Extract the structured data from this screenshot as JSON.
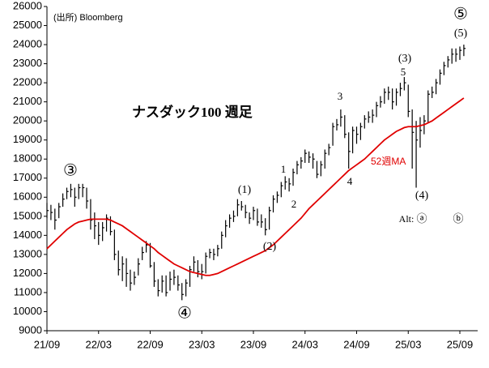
{
  "chart_data": {
    "type": "ohlc",
    "title": "ナスダック100 週足",
    "source": "(出所)  Bloomberg",
    "categories": [
      "21/09",
      null,
      null,
      null,
      null,
      null,
      null,
      null,
      null,
      null,
      null,
      null,
      null,
      "22/03",
      null,
      null,
      null,
      null,
      null,
      null,
      null,
      null,
      null,
      null,
      null,
      null,
      "22/09",
      null,
      null,
      null,
      null,
      null,
      null,
      null,
      null,
      null,
      null,
      null,
      null,
      "23/03",
      null,
      null,
      null,
      null,
      null,
      null,
      null,
      null,
      null,
      null,
      null,
      null,
      "23/09",
      null,
      null,
      null,
      null,
      null,
      null,
      null,
      null,
      null,
      null,
      null,
      null,
      "24/03",
      null,
      null,
      null,
      null,
      null,
      null,
      null,
      null,
      null,
      null,
      null,
      null,
      "24/09",
      null,
      null,
      null,
      null,
      null,
      null,
      null,
      null,
      null,
      null,
      null,
      null,
      "25/03",
      null,
      null,
      null,
      null,
      null,
      null,
      null,
      null,
      null,
      null,
      null,
      null,
      "25/09",
      null
    ],
    "high": [
      15700,
      15600,
      15400,
      15700,
      16200,
      16500,
      16700,
      16500,
      16700,
      16700,
      16500,
      15900,
      15200,
      14700,
      14700,
      15100,
      15000,
      14300,
      13200,
      12900,
      12800,
      12200,
      12100,
      12800,
      13400,
      13700,
      13600,
      12600,
      11700,
      11900,
      11900,
      12100,
      12200,
      11900,
      11500,
      11700,
      12400,
      12900,
      12700,
      12500,
      13100,
      13300,
      13300,
      13500,
      14200,
      14800,
      15100,
      15300,
      15900,
      15800,
      15600,
      15200,
      15500,
      15400,
      15100,
      14900,
      15500,
      16100,
      16300,
      16800,
      17100,
      17000,
      17500,
      17900,
      18100,
      18500,
      18400,
      18300,
      17900,
      17900,
      18500,
      18800,
      19900,
      20100,
      20600,
      20300,
      19400,
      19700,
      19700,
      19900,
      20300,
      20500,
      20600,
      21000,
      21300,
      21700,
      21800,
      21700,
      21700,
      22000,
      22300,
      21900,
      20600,
      20000,
      20200,
      20300,
      21600,
      21800,
      22200,
      22700,
      23100,
      23400,
      23800,
      23800,
      23900,
      24000
    ],
    "low": [
      14900,
      14800,
      14300,
      14900,
      15500,
      15900,
      16000,
      15500,
      15900,
      16000,
      15400,
      14300,
      13800,
      13500,
      13700,
      14200,
      14000,
      12700,
      11900,
      11600,
      11300,
      11100,
      11400,
      11900,
      12700,
      13100,
      12300,
      11300,
      10800,
      11000,
      10800,
      11100,
      11400,
      11100,
      10600,
      10800,
      11300,
      12100,
      11800,
      11700,
      12000,
      12800,
      12700,
      12900,
      13300,
      13900,
      14400,
      14700,
      15000,
      15300,
      14900,
      14600,
      14800,
      14500,
      14400,
      14000,
      14300,
      15200,
      15700,
      16000,
      16400,
      16300,
      16600,
      17200,
      17500,
      17800,
      17800,
      17500,
      17000,
      17100,
      17500,
      18200,
      18700,
      19500,
      19700,
      19100,
      17500,
      18300,
      18800,
      19000,
      19600,
      19900,
      19900,
      20200,
      20700,
      20900,
      21100,
      20600,
      20800,
      21300,
      21600,
      20200,
      17500,
      16500,
      18600,
      19300,
      19900,
      21200,
      21400,
      21900,
      22400,
      22800,
      23000,
      23100,
      23200,
      23400
    ],
    "close": [
      15300,
      15200,
      14800,
      15500,
      15900,
      16300,
      16400,
      16000,
      16500,
      16500,
      15800,
      14800,
      14500,
      14000,
      14400,
      14900,
      14200,
      13000,
      12200,
      12500,
      12000,
      11500,
      11800,
      12500,
      13100,
      13500,
      12400,
      11600,
      11100,
      11600,
      11000,
      11700,
      11800,
      11400,
      10900,
      11500,
      12200,
      12600,
      12100,
      12100,
      12900,
      13100,
      13000,
      13300,
      14000,
      14500,
      14900,
      15000,
      15600,
      15500,
      15200,
      14900,
      15300,
      14700,
      14700,
      14300,
      15300,
      15900,
      16100,
      16600,
      16800,
      16700,
      17300,
      17700,
      17900,
      18300,
      18100,
      18000,
      17200,
      17700,
      18300,
      18600,
      19700,
      19800,
      20200,
      19300,
      18400,
      19500,
      19300,
      19700,
      20100,
      20200,
      20300,
      20800,
      21000,
      21500,
      21500,
      21000,
      21500,
      21700,
      22000,
      20500,
      19400,
      19000,
      19500,
      20000,
      21400,
      21500,
      22000,
      22500,
      22900,
      23200,
      23500,
      23500,
      23700,
      23800
    ],
    "color": "#000000",
    "series": [
      {
        "name": "52週MA",
        "color": "#e00000",
        "values": [
          13300,
          13500,
          13700,
          13900,
          14100,
          14300,
          14450,
          14600,
          14700,
          14750,
          14800,
          14850,
          14850,
          14850,
          14850,
          14850,
          14800,
          14700,
          14600,
          14500,
          14350,
          14200,
          14050,
          13900,
          13750,
          13600,
          13450,
          13300,
          13100,
          12950,
          12800,
          12650,
          12500,
          12400,
          12300,
          12200,
          12100,
          12050,
          12000,
          11950,
          11900,
          11900,
          11950,
          12000,
          12100,
          12200,
          12300,
          12400,
          12500,
          12600,
          12700,
          12800,
          12900,
          13000,
          13100,
          13200,
          13350,
          13500,
          13700,
          13900,
          14100,
          14300,
          14500,
          14700,
          14900,
          15150,
          15400,
          15600,
          15800,
          16000,
          16200,
          16400,
          16600,
          16800,
          17000,
          17200,
          17400,
          17550,
          17700,
          17850,
          18000,
          18200,
          18400,
          18600,
          18800,
          19000,
          19150,
          19300,
          19450,
          19550,
          19650,
          19700,
          19700,
          19700,
          19750,
          19800,
          19900,
          20000,
          20150,
          20300,
          20450,
          20600,
          20750,
          20900,
          21050,
          21200
        ]
      }
    ],
    "ylim": [
      9000,
      26000
    ],
    "yticks": [
      9000,
      10000,
      11000,
      12000,
      13000,
      14000,
      15000,
      16000,
      17000,
      18000,
      19000,
      20000,
      21000,
      22000,
      23000,
      24000,
      25000,
      26000
    ],
    "annotations": [
      "③",
      "④",
      "⑤",
      "(1)",
      "(2)",
      "(3)",
      "(4)",
      "(5)",
      "1",
      "2",
      "3",
      "4",
      "5",
      "Alt:",
      "ⓐ",
      "ⓑ"
    ]
  }
}
